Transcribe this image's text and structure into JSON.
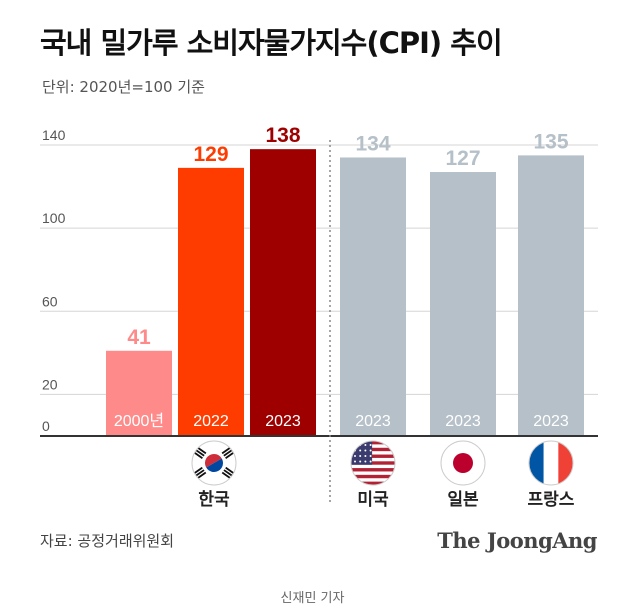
{
  "header": {
    "title": "국내 밀가루 소비자물가지수(CPI) 추이",
    "unit": "단위: 2020년=100 기준"
  },
  "chart_data": {
    "type": "bar",
    "title": "국내 밀가루 소비자물가지수(CPI) 추이",
    "unit_note": "단위: 2020년=100 기준",
    "ylim": [
      0,
      140
    ],
    "yticks": [
      0,
      20,
      60,
      100,
      140
    ],
    "bars": [
      {
        "label": "2000년",
        "value": 41,
        "group": "korea",
        "color": "#ff8a8a",
        "value_color": "#ff8a8a"
      },
      {
        "label": "2022",
        "value": 129,
        "group": "korea",
        "color": "#ff3c00",
        "value_color": "#ff3c00"
      },
      {
        "label": "2023",
        "value": 138,
        "group": "korea",
        "color": "#9e0000",
        "value_color": "#9e0000"
      },
      {
        "label": "2023",
        "value": 134,
        "group": "usa",
        "color": "#b5c0c8",
        "value_color": "#b5c0c8"
      },
      {
        "label": "2023",
        "value": 127,
        "group": "japan",
        "color": "#b5c0c8",
        "value_color": "#b5c0c8"
      },
      {
        "label": "2023",
        "value": 135,
        "group": "france",
        "color": "#b5c0c8",
        "value_color": "#b5c0c8"
      }
    ],
    "countries": [
      {
        "id": "korea",
        "name": "한국",
        "flag": "korea-flag-icon"
      },
      {
        "id": "usa",
        "name": "미국",
        "flag": "usa-flag-icon"
      },
      {
        "id": "japan",
        "name": "일본",
        "flag": "japan-flag-icon"
      },
      {
        "id": "france",
        "name": "프랑스",
        "flag": "france-flag-icon"
      }
    ]
  },
  "footer": {
    "source": "자료: 공정거래위원회",
    "brand": "The JoongAng",
    "credit": "신재민 기자"
  },
  "colors": {
    "grid": "#d5d5d5",
    "axis": "#333333",
    "tick_text": "#555555",
    "bar_label_text": "#ffffff"
  }
}
